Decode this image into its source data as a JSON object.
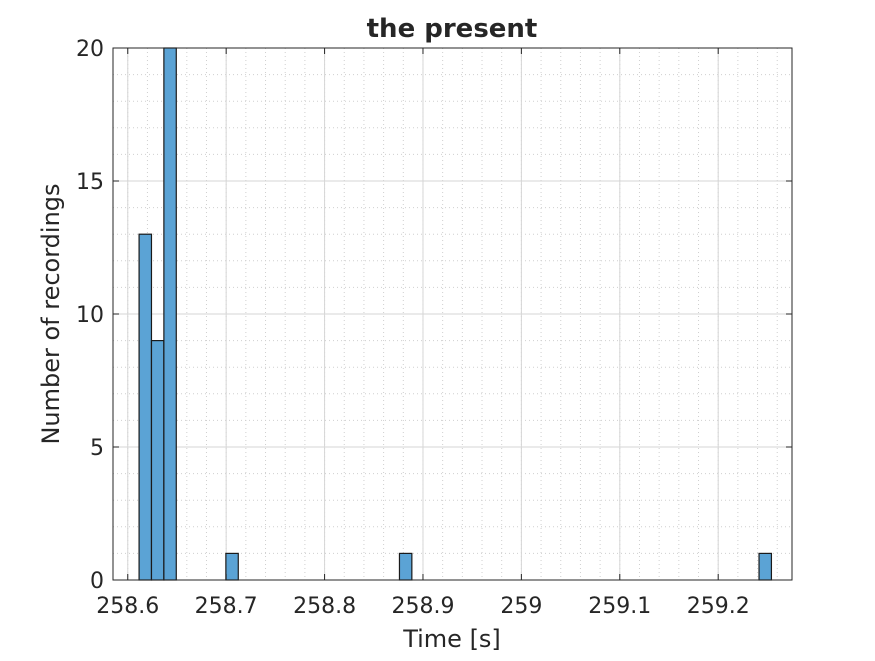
{
  "chart_data": {
    "type": "bar",
    "title": "the present",
    "xlabel": "Time [s]",
    "ylabel": "Number of recordings",
    "xlim": [
      258.585,
      259.275
    ],
    "ylim": [
      0,
      20
    ],
    "xticks": [
      258.6,
      258.7,
      258.8,
      258.9,
      259,
      259.1,
      259.2
    ],
    "xtick_labels": [
      "258.6",
      "258.7",
      "258.8",
      "258.9",
      "259",
      "259.1",
      "259.2"
    ],
    "yticks": [
      0,
      5,
      10,
      15,
      20
    ],
    "ytick_labels": [
      "0",
      "5",
      "10",
      "15",
      "20"
    ],
    "grid": true,
    "minor_grid": true,
    "bar_color": "#5ba3d5",
    "bar_edge_color": "#1a1a1a",
    "bins": [
      {
        "start": 258.6115,
        "end": 258.6241,
        "count": 13
      },
      {
        "start": 258.6241,
        "end": 258.6367,
        "count": 9
      },
      {
        "start": 258.6367,
        "end": 258.6493,
        "count": 20
      },
      {
        "start": 258.6997,
        "end": 258.7123,
        "count": 1
      },
      {
        "start": 258.8761,
        "end": 258.8887,
        "count": 1
      },
      {
        "start": 259.2415,
        "end": 259.2541,
        "count": 1
      }
    ]
  }
}
